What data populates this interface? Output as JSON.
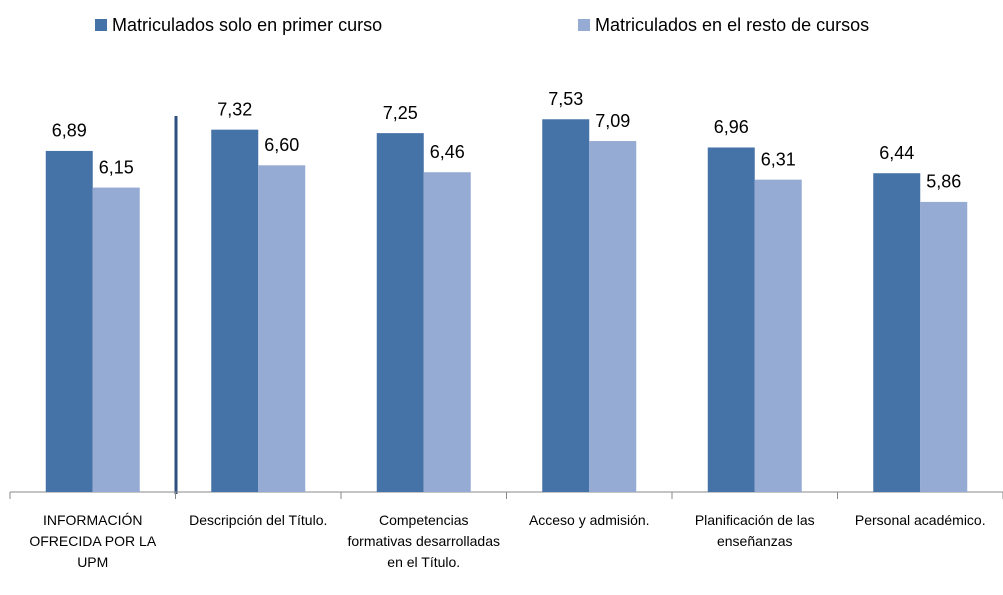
{
  "chart_data": {
    "type": "bar",
    "categories": [
      "INFORMACIÓN OFRECIDA POR LA UPM",
      "Descripción del Título.",
      "Competencias formativas desarrolladas en el Título.",
      "Acceso y admisión.",
      "Planificación de las enseñanzas",
      "Personal académico."
    ],
    "series": [
      {
        "name": "Matriculados solo en primer curso",
        "color": "#4572a7",
        "values": [
          6.89,
          7.32,
          7.25,
          7.53,
          6.96,
          6.44
        ],
        "value_labels": [
          "6,89",
          "7,32",
          "7,25",
          "7,53",
          "6,96",
          "6,44"
        ]
      },
      {
        "name": "Matriculados en el resto de cursos",
        "color": "#95abd3",
        "values": [
          6.15,
          6.6,
          6.46,
          7.09,
          6.31,
          5.86
        ],
        "value_labels": [
          "6,15",
          "6,60",
          "6,46",
          "7,09",
          "6,31",
          "5,86"
        ]
      }
    ],
    "ylim": [
      0,
      8
    ],
    "legend": "top"
  }
}
